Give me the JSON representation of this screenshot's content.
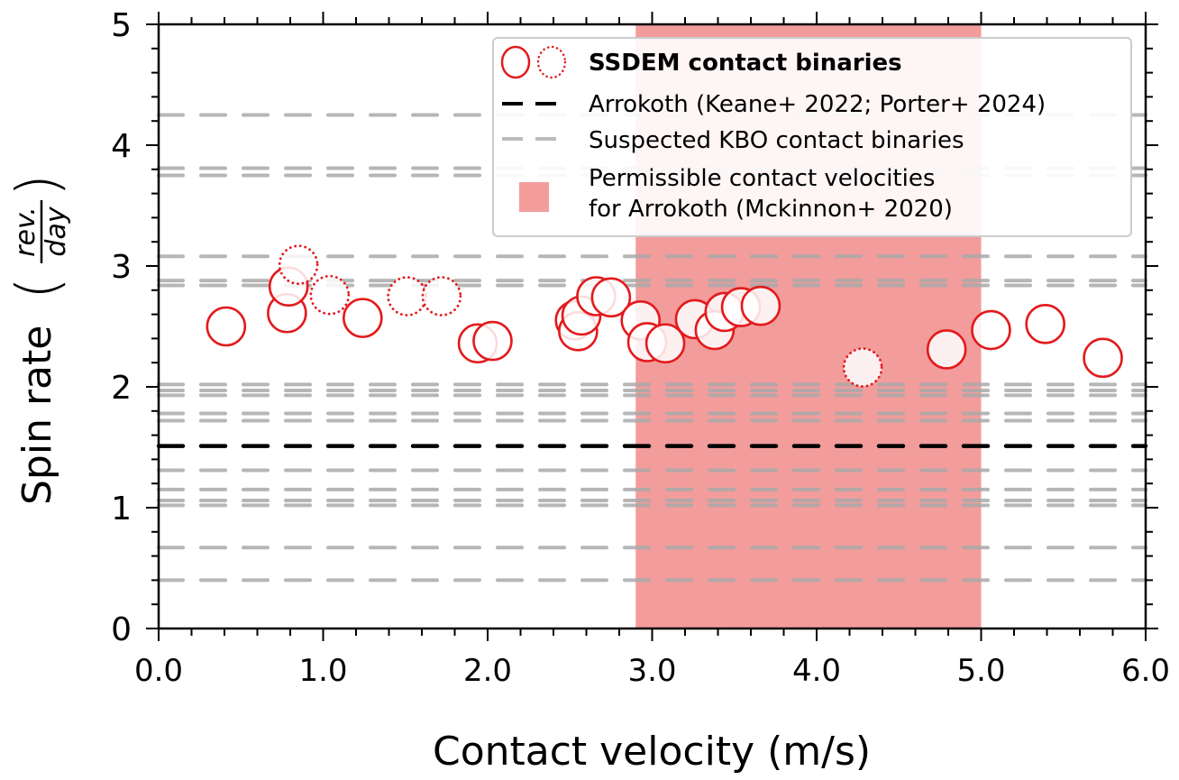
{
  "chart_data": {
    "type": "scatter",
    "xlabel": "Contact velocity (m/s)",
    "ylabel": "Spin rate",
    "ylabel_unit_numerator": "rev.",
    "ylabel_unit_denominator": "day",
    "xlim": [
      0,
      6
    ],
    "ylim": [
      0,
      5
    ],
    "xticks": [
      "0.0",
      "1.0",
      "2.0",
      "3.0",
      "4.0",
      "5.0",
      "6.0"
    ],
    "yticks": [
      "0",
      "1",
      "2",
      "3",
      "4",
      "5"
    ],
    "grid": false,
    "legend_placement": "top-right",
    "legend": {
      "ssdem": "SSDEM contact binaries",
      "arrokoth": "Arrokoth (Keane+ 2022; Porter+ 2024)",
      "kbo": "Suspected KBO contact binaries",
      "region_line1": "Permissible contact velocities",
      "region_line2": "for Arrokoth (Mckinnon+ 2020)"
    },
    "colors": {
      "marker": "#e31a1c",
      "region": "#f29c9c",
      "arrokoth": "#000000",
      "kbo": "#a9a9a9"
    },
    "permissible_region": [
      2.9,
      5.0
    ],
    "arrokoth_spin": 1.51,
    "kbo_spins": [
      4.25,
      3.81,
      3.75,
      3.08,
      2.88,
      2.84,
      2.02,
      1.97,
      1.93,
      1.78,
      1.72,
      1.31,
      1.15,
      1.06,
      1.02,
      0.67,
      0.4
    ],
    "points": [
      {
        "x": 0.41,
        "y": 2.5,
        "style": "solid"
      },
      {
        "x": 0.78,
        "y": 2.61,
        "style": "solid"
      },
      {
        "x": 0.79,
        "y": 2.83,
        "style": "solid"
      },
      {
        "x": 0.85,
        "y": 3.01,
        "style": "dotted"
      },
      {
        "x": 1.04,
        "y": 2.76,
        "style": "dotted"
      },
      {
        "x": 1.24,
        "y": 2.57,
        "style": "solid"
      },
      {
        "x": 1.51,
        "y": 2.75,
        "style": "dotted"
      },
      {
        "x": 1.72,
        "y": 2.75,
        "style": "dotted"
      },
      {
        "x": 1.94,
        "y": 2.36,
        "style": "solid"
      },
      {
        "x": 2.03,
        "y": 2.38,
        "style": "solid"
      },
      {
        "x": 2.53,
        "y": 2.55,
        "style": "solid"
      },
      {
        "x": 2.55,
        "y": 2.46,
        "style": "solid"
      },
      {
        "x": 2.57,
        "y": 2.59,
        "style": "solid"
      },
      {
        "x": 2.66,
        "y": 2.75,
        "style": "solid"
      },
      {
        "x": 2.75,
        "y": 2.74,
        "style": "solid"
      },
      {
        "x": 2.93,
        "y": 2.55,
        "style": "solid"
      },
      {
        "x": 2.97,
        "y": 2.37,
        "style": "solid"
      },
      {
        "x": 3.08,
        "y": 2.36,
        "style": "solid"
      },
      {
        "x": 3.26,
        "y": 2.56,
        "style": "solid"
      },
      {
        "x": 3.38,
        "y": 2.47,
        "style": "solid"
      },
      {
        "x": 3.44,
        "y": 2.62,
        "style": "solid"
      },
      {
        "x": 3.54,
        "y": 2.66,
        "style": "solid"
      },
      {
        "x": 3.66,
        "y": 2.67,
        "style": "solid"
      },
      {
        "x": 4.28,
        "y": 2.16,
        "style": "dotted"
      },
      {
        "x": 4.79,
        "y": 2.31,
        "style": "solid"
      },
      {
        "x": 5.06,
        "y": 2.47,
        "style": "solid"
      },
      {
        "x": 5.39,
        "y": 2.52,
        "style": "solid"
      },
      {
        "x": 5.74,
        "y": 2.24,
        "style": "solid"
      }
    ]
  }
}
